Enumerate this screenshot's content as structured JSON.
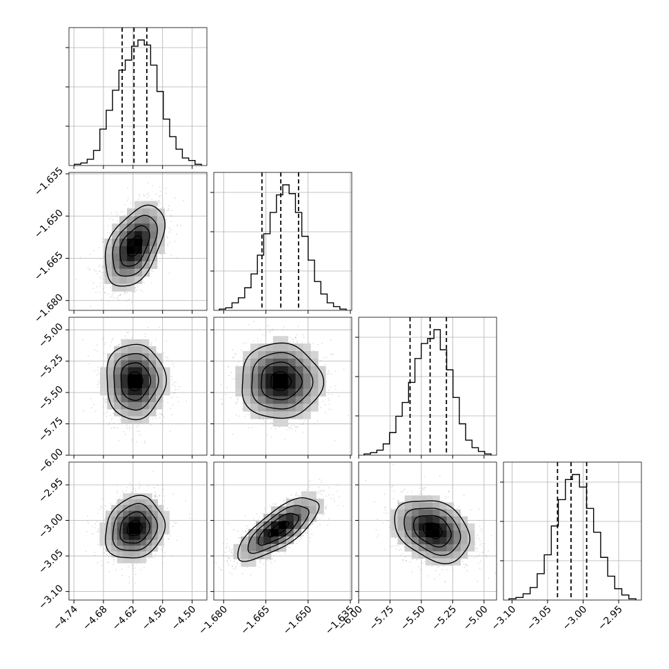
{
  "chart_data": {
    "type": "corner",
    "grid": true,
    "parameters": [
      {
        "range": [
          -4.75,
          -4.47
        ],
        "ticks": [
          "−4.74",
          "−4.68",
          "−4.62",
          "−4.56",
          "−4.50"
        ],
        "tick_values": [
          -4.74,
          -4.68,
          -4.62,
          -4.56,
          -4.5
        ],
        "quantiles": [
          -4.642,
          -4.618,
          -4.592
        ],
        "hist": [
          0.01,
          0.02,
          0.05,
          0.12,
          0.29,
          0.44,
          0.6,
          0.76,
          0.84,
          0.95,
          1.0,
          0.96,
          0.8,
          0.59,
          0.37,
          0.23,
          0.13,
          0.06,
          0.04,
          0.01
        ]
      },
      {
        "range": [
          -1.6835,
          -1.6345
        ],
        "ticks": [
          "−1.680",
          "−1.665",
          "−1.650",
          "−1.635"
        ],
        "tick_values": [
          -1.68,
          -1.665,
          -1.65,
          -1.635
        ],
        "quantiles": [
          -1.6664,
          -1.6597,
          -1.6534
        ],
        "hist": [
          0.01,
          0.02,
          0.06,
          0.1,
          0.18,
          0.29,
          0.44,
          0.61,
          0.78,
          0.92,
          1.0,
          0.93,
          0.78,
          0.59,
          0.4,
          0.23,
          0.13,
          0.06,
          0.03,
          0.01
        ]
      },
      {
        "range": [
          -6.0,
          -4.9
        ],
        "ticks": [
          "−6.00",
          "−5.75",
          "−5.50",
          "−5.25",
          "−5.00"
        ],
        "tick_values": [
          -6.0,
          -5.75,
          -5.5,
          -5.25,
          -5.0
        ],
        "quantiles": [
          -5.59,
          -5.43,
          -5.3
        ],
        "hist": [
          0.01,
          0.02,
          0.04,
          0.09,
          0.18,
          0.31,
          0.42,
          0.58,
          0.77,
          0.89,
          0.93,
          1.0,
          0.84,
          0.68,
          0.46,
          0.25,
          0.12,
          0.06,
          0.03,
          0.01
        ]
      },
      {
        "range": [
          -3.112,
          -2.918
        ],
        "ticks": [
          "−3.10",
          "−3.05",
          "−3.00",
          "−2.95"
        ],
        "tick_values": [
          -3.1,
          -3.05,
          -3.0,
          -2.95
        ],
        "quantiles": [
          -3.036,
          -3.017,
          -2.995
        ],
        "hist": [
          0.01,
          0.02,
          0.05,
          0.1,
          0.21,
          0.36,
          0.59,
          0.8,
          0.96,
          1.0,
          0.9,
          0.73,
          0.54,
          0.34,
          0.19,
          0.09,
          0.04,
          0.01
        ]
      }
    ],
    "pairs": [
      {
        "row": 1,
        "col": 0,
        "mean": [
          -4.617,
          -1.6607
        ],
        "sd": [
          0.03,
          0.0072
        ],
        "corr": 0.45
      },
      {
        "row": 2,
        "col": 0,
        "mean": [
          -4.616,
          -5.41
        ],
        "sd": [
          0.03,
          0.15
        ],
        "corr": 0.0
      },
      {
        "row": 2,
        "col": 1,
        "mean": [
          -1.6598,
          -5.41
        ],
        "sd": [
          0.0072,
          0.15
        ],
        "corr": 0.0
      },
      {
        "row": 3,
        "col": 0,
        "mean": [
          -4.617,
          -3.011
        ],
        "sd": [
          0.03,
          0.022
        ],
        "corr": 0.15
      },
      {
        "row": 3,
        "col": 1,
        "mean": [
          -1.6605,
          -3.012
        ],
        "sd": [
          0.0072,
          0.022
        ],
        "corr": 0.75
      },
      {
        "row": 3,
        "col": 2,
        "mean": [
          -5.41,
          -3.014
        ],
        "sd": [
          0.15,
          0.022
        ],
        "corr": -0.3
      }
    ]
  }
}
